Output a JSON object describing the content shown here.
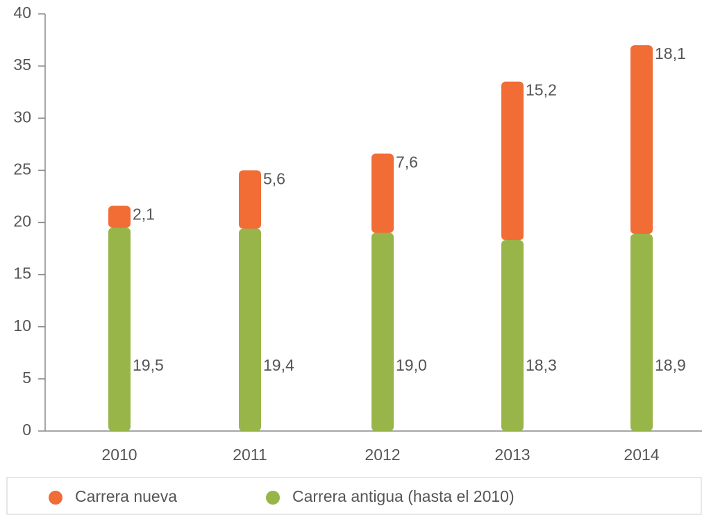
{
  "chart_data": {
    "type": "bar",
    "stacked": true,
    "categories": [
      "2010",
      "2011",
      "2012",
      "2013",
      "2014"
    ],
    "series": [
      {
        "name": "Carrera nueva",
        "color": "#f26c36",
        "values": [
          2.1,
          5.6,
          7.6,
          15.2,
          18.1
        ],
        "value_labels": [
          "2,1",
          "5,6",
          "7,6",
          "15,2",
          "18,1"
        ]
      },
      {
        "name": "Carrera antigua (hasta el 2010)",
        "color": "#97b548",
        "values": [
          19.5,
          19.4,
          19.0,
          18.3,
          18.9
        ],
        "value_labels": [
          "19,5",
          "19,4",
          "19,0",
          "18,3",
          "18,9"
        ]
      }
    ],
    "ylim": [
      0,
      40
    ],
    "yticks": [
      0,
      5,
      10,
      15,
      20,
      25,
      30,
      35,
      40
    ],
    "grid": false,
    "legend": "bottom"
  }
}
